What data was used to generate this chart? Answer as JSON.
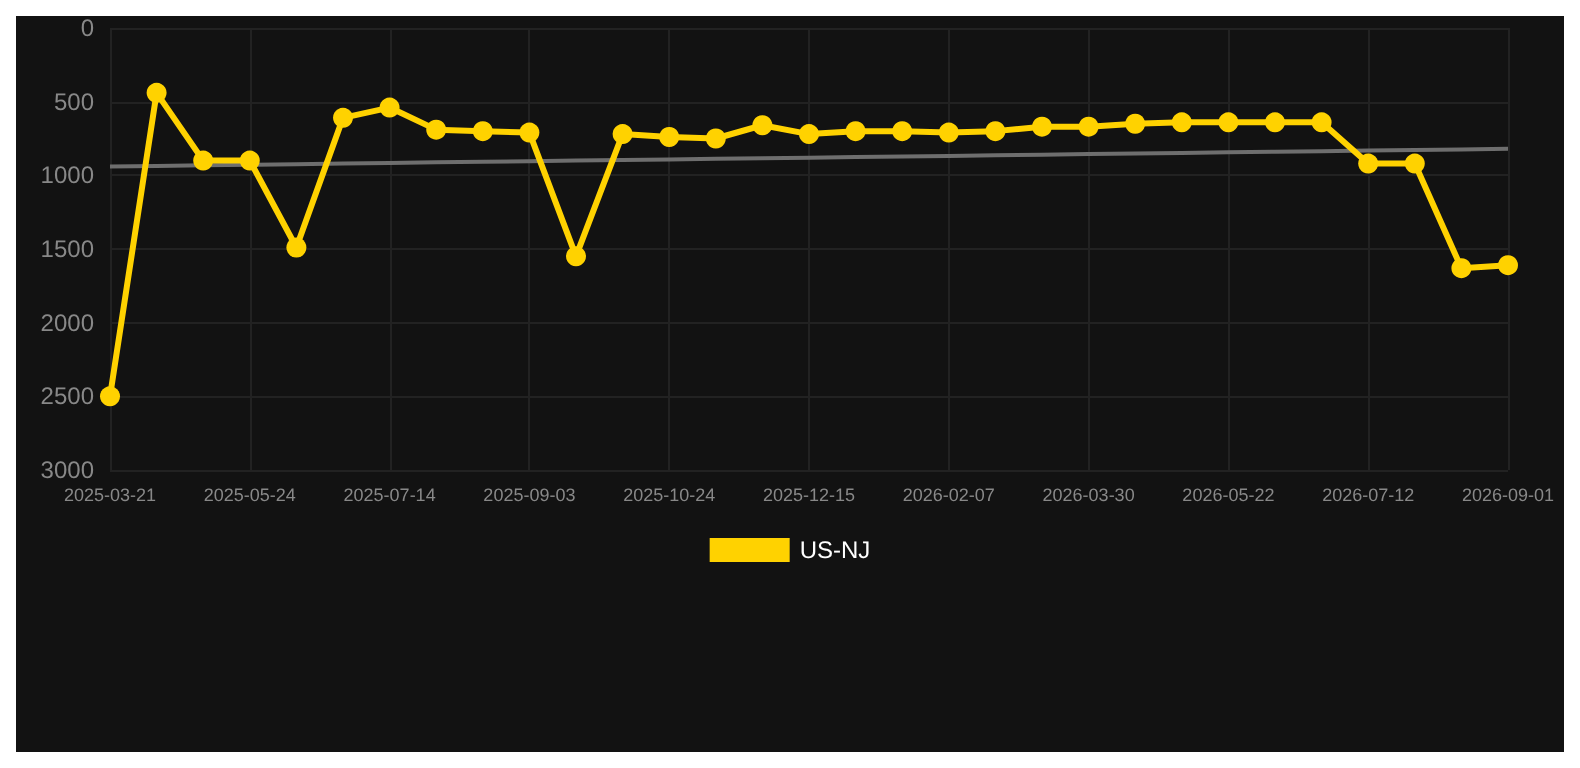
{
  "chart_data": {
    "type": "line",
    "categories": [
      "2025-03-21",
      null,
      null,
      "2025-05-24",
      null,
      null,
      "2025-07-14",
      null,
      null,
      "2025-09-03",
      null,
      null,
      "2025-10-24",
      null,
      null,
      "2025-12-15",
      null,
      null,
      "2026-02-07",
      null,
      null,
      "2026-03-30",
      null,
      null,
      "2026-05-22",
      null,
      null,
      "2026-07-12",
      null,
      null,
      "2026-09-01"
    ],
    "series": [
      {
        "name": "US-NJ",
        "color": "#ffd200",
        "values": [
          2500,
          440,
          900,
          900,
          1490,
          610,
          540,
          690,
          700,
          710,
          1550,
          720,
          740,
          750,
          660,
          720,
          700,
          700,
          710,
          700,
          670,
          670,
          650,
          640,
          640,
          640,
          640,
          920,
          920,
          1630,
          1610
        ]
      },
      {
        "color": "#6e6e6e",
        "marker": "none",
        "values": [
          940,
          936,
          932,
          928,
          924,
          920,
          916,
          912,
          908,
          904,
          900,
          896,
          892,
          888,
          884,
          880,
          876,
          872,
          868,
          864,
          860,
          856,
          852,
          848,
          844,
          840,
          836,
          832,
          828,
          824,
          820
        ]
      }
    ],
    "ylim": [
      3000,
      0
    ],
    "yticks": [
      0,
      500,
      1000,
      1500,
      2000,
      2500,
      3000
    ],
    "grid": true,
    "legend": "bottom",
    "marker": "circle",
    "line_style": "solid"
  }
}
